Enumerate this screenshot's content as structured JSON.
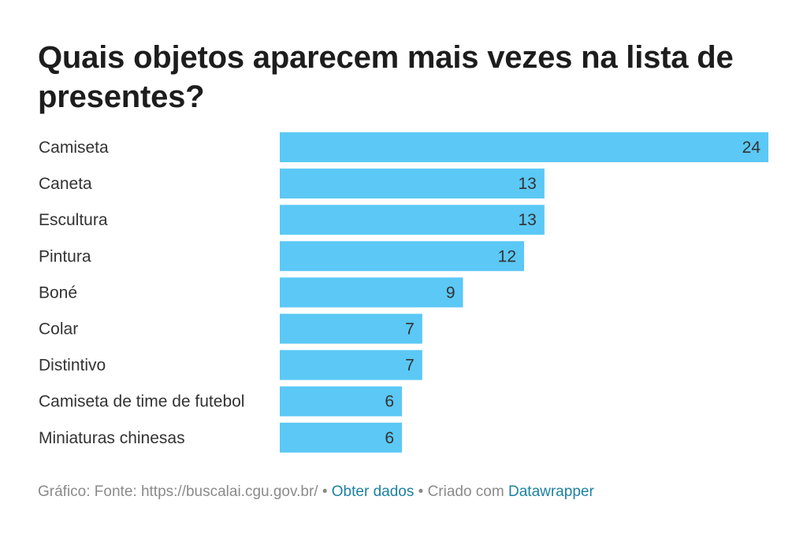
{
  "title": "Quais objetos aparecem mais vezes na lista de presentes?",
  "colors": {
    "bar": "#5bc8f5",
    "label": "#333333",
    "link": "#1d81a2"
  },
  "chart_data": {
    "type": "bar",
    "orientation": "horizontal",
    "title": "Quais objetos aparecem mais vezes na lista de presentes?",
    "categories": [
      "Camiseta",
      "Caneta",
      "Escultura",
      "Pintura",
      "Boné",
      "Colar",
      "Distintivo",
      "Camiseta de time de futebol",
      "Miniaturas chinesas"
    ],
    "values": [
      24,
      13,
      13,
      12,
      9,
      7,
      7,
      6,
      6
    ],
    "xlim": [
      0,
      24
    ],
    "grid": false,
    "legend": false
  },
  "footer": {
    "source_text": "Gráfico: Fonte: https://buscalai.cgu.gov.br/",
    "separator": "•",
    "get_data_label": "Obter dados",
    "created_with": "Criado com",
    "tool_label": "Datawrapper"
  }
}
